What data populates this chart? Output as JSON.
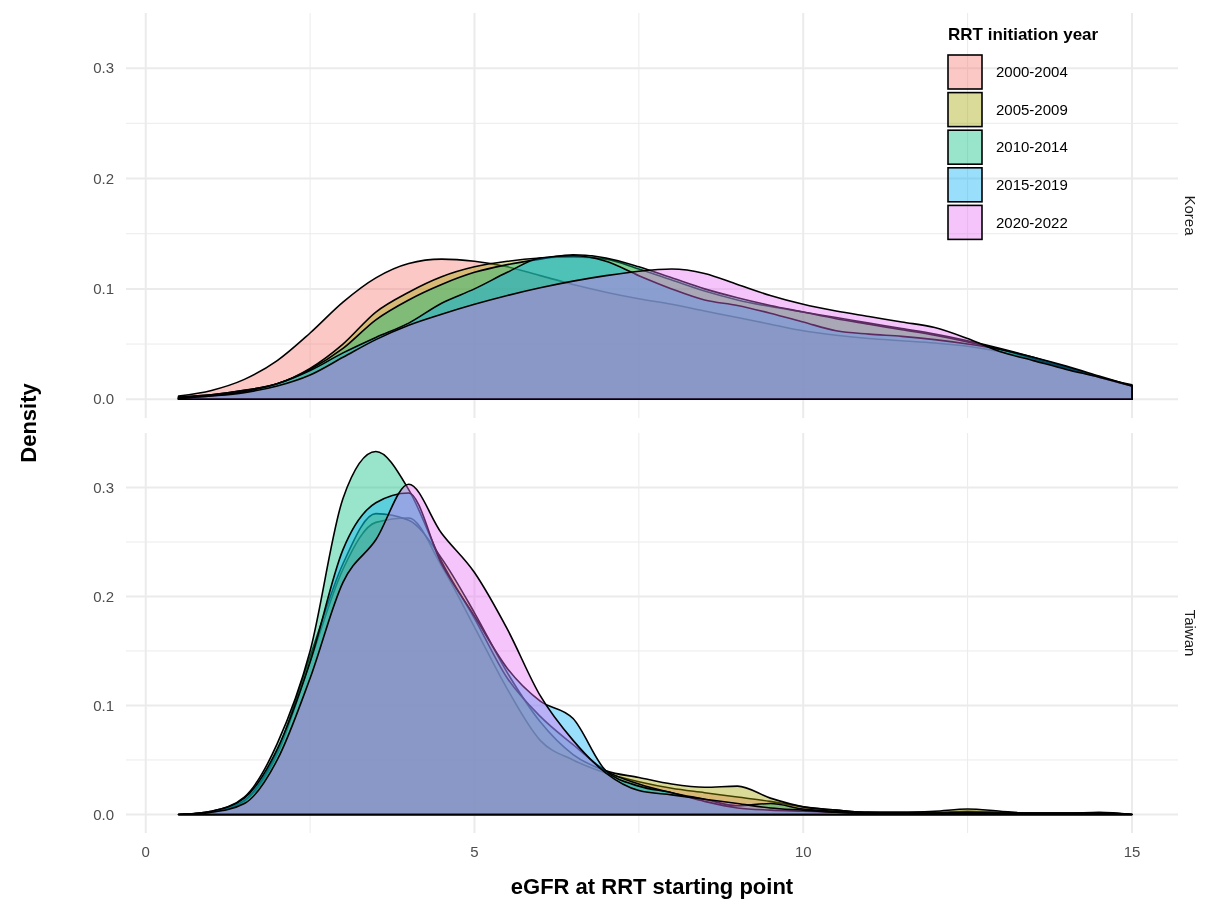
{
  "chart_data": [
    {
      "type": "area",
      "title": "Korea",
      "ylabel": "Density",
      "legend_title": "RRT initiation year",
      "legend": "top right",
      "grid": true,
      "tick_labels": "y",
      "xlim": [
        -0.3,
        15.7
      ],
      "xticks": [
        0,
        {
          "value": 2.5,
          "label": null
        },
        5,
        {
          "value": 7.5,
          "label": null
        },
        10,
        {
          "value": 12.5,
          "label": null
        },
        15
      ],
      "ylim": [
        -0.017,
        0.35
      ],
      "yticks": [
        {
          "value": 0,
          "label": "0.0"
        },
        {
          "value": 0.05,
          "label": null
        },
        0.1,
        {
          "value": 0.15,
          "label": null
        },
        0.2,
        {
          "value": 0.25,
          "label": null
        },
        0.3
      ],
      "x": [
        0.5,
        1,
        1.5,
        2,
        2.5,
        3,
        3.5,
        4,
        4.5,
        5,
        5.5,
        6,
        6.5,
        7,
        7.5,
        8,
        8.5,
        9,
        9.5,
        10,
        10.5,
        11,
        11.5,
        12,
        12.5,
        13,
        13.5,
        14,
        14.5,
        15
      ],
      "series": [
        {
          "name": "2000-2004",
          "color": "#f8766d",
          "values": [
            0.003,
            0.008,
            0.018,
            0.035,
            0.06,
            0.088,
            0.11,
            0.123,
            0.127,
            0.125,
            0.12,
            0.112,
            0.104,
            0.097,
            0.091,
            0.086,
            0.08,
            0.074,
            0.068,
            0.062,
            0.058,
            0.055,
            0.053,
            0.051,
            0.048,
            0.043,
            0.036,
            0.028,
            0.02,
            0.013
          ]
        },
        {
          "name": "2005-2009",
          "color": "#a3a500",
          "values": [
            0.002,
            0.004,
            0.008,
            0.014,
            0.028,
            0.05,
            0.079,
            0.097,
            0.111,
            0.12,
            0.125,
            0.128,
            0.129,
            0.127,
            0.118,
            0.108,
            0.098,
            0.09,
            0.084,
            0.079,
            0.074,
            0.069,
            0.064,
            0.059,
            0.053,
            0.046,
            0.038,
            0.029,
            0.02,
            0.012
          ]
        },
        {
          "name": "2010-2014",
          "color": "#00bf7d",
          "values": [
            0.002,
            0.004,
            0.008,
            0.014,
            0.027,
            0.046,
            0.072,
            0.09,
            0.104,
            0.115,
            0.122,
            0.127,
            0.131,
            0.128,
            0.12,
            0.11,
            0.1,
            0.092,
            0.085,
            0.079,
            0.073,
            0.068,
            0.063,
            0.058,
            0.052,
            0.045,
            0.037,
            0.028,
            0.02,
            0.012
          ]
        },
        {
          "name": "2015-2019",
          "color": "#00b0f6",
          "values": [
            0.001,
            0.003,
            0.007,
            0.014,
            0.026,
            0.042,
            0.056,
            0.069,
            0.087,
            0.1,
            0.115,
            0.128,
            0.13,
            0.125,
            0.112,
            0.1,
            0.09,
            0.085,
            0.078,
            0.07,
            0.062,
            0.059,
            0.057,
            0.054,
            0.05,
            0.045,
            0.038,
            0.03,
            0.021,
            0.012
          ]
        },
        {
          "name": "2020-2022",
          "color": "#e76bf3",
          "values": [
            0.001,
            0.003,
            0.006,
            0.012,
            0.022,
            0.038,
            0.054,
            0.067,
            0.077,
            0.086,
            0.094,
            0.101,
            0.107,
            0.112,
            0.116,
            0.118,
            0.114,
            0.104,
            0.094,
            0.086,
            0.08,
            0.075,
            0.07,
            0.065,
            0.055,
            0.043,
            0.035,
            0.027,
            0.02,
            0.012
          ]
        }
      ]
    },
    {
      "type": "area",
      "title": "Taiwan",
      "xlabel": "eGFR at RRT starting point",
      "grid": true,
      "xlim": [
        -0.3,
        15.7
      ],
      "xticks": [
        0,
        {
          "value": 2.5,
          "label": null
        },
        5,
        {
          "value": 7.5,
          "label": null
        },
        10,
        {
          "value": 12.5,
          "label": null
        },
        15
      ],
      "ylim": [
        -0.017,
        0.35
      ],
      "yticks": [
        {
          "value": 0,
          "label": "0.0"
        },
        {
          "value": 0.05,
          "label": null
        },
        0.1,
        {
          "value": 0.15,
          "label": null
        },
        0.2,
        {
          "value": 0.25,
          "label": null
        },
        0.3
      ],
      "x": [
        0.5,
        1,
        1.5,
        2,
        2.5,
        3,
        3.5,
        4,
        4.5,
        5,
        5.5,
        6,
        6.5,
        7,
        7.5,
        8,
        8.5,
        9,
        9.5,
        10,
        10.5,
        11,
        11.5,
        12,
        12.5,
        13,
        13.5,
        14,
        14.5,
        15
      ],
      "series": [
        {
          "color": "#f8766d",
          "values": [
            0,
            0.002,
            0.012,
            0.055,
            0.14,
            0.225,
            0.268,
            0.272,
            0.228,
            0.172,
            0.115,
            0.068,
            0.05,
            0.038,
            0.03,
            0.024,
            0.02,
            0.016,
            0.012,
            0.007,
            0.004,
            0.002,
            0.002,
            0.002,
            0.003,
            0.002,
            0.001,
            0.001,
            0.001,
            0
          ]
        },
        {
          "color": "#a3a500",
          "values": [
            0,
            0.002,
            0.013,
            0.058,
            0.145,
            0.23,
            0.276,
            0.27,
            0.235,
            0.185,
            0.13,
            0.085,
            0.055,
            0.04,
            0.034,
            0.028,
            0.025,
            0.026,
            0.015,
            0.007,
            0.004,
            0.002,
            0.002,
            0.003,
            0.005,
            0.003,
            0.001,
            0.001,
            0.002,
            0
          ]
        },
        {
          "color": "#00bf7d",
          "values": [
            0,
            0.003,
            0.016,
            0.065,
            0.15,
            0.29,
            0.333,
            0.298,
            0.232,
            0.18,
            0.125,
            0.09,
            0.064,
            0.04,
            0.028,
            0.02,
            0.014,
            0.008,
            0.01,
            0.005,
            0.003,
            0.002,
            0.001,
            0.001,
            0.002,
            0.001,
            0.001,
            0.001,
            0.001,
            0
          ]
        },
        {
          "color": "#00b0f6",
          "values": [
            0,
            0.003,
            0.015,
            0.06,
            0.14,
            0.243,
            0.286,
            0.295,
            0.23,
            0.182,
            0.134,
            0.104,
            0.088,
            0.04,
            0.026,
            0.02,
            0.012,
            0.006,
            0.004,
            0.003,
            0.002,
            0.001,
            0.001,
            0.001,
            0.001,
            0.001,
            0.001,
            0.001,
            0.001,
            0
          ]
        },
        {
          "color": "#e76bf3",
          "values": [
            0,
            0.002,
            0.01,
            0.05,
            0.125,
            0.213,
            0.252,
            0.303,
            0.258,
            0.222,
            0.17,
            0.109,
            0.068,
            0.038,
            0.022,
            0.018,
            0.014,
            0.01,
            0.006,
            0.004,
            0.002,
            0.001,
            0.001,
            0.001,
            0.001,
            0.001,
            0.001,
            0.001,
            0.001,
            0
          ]
        }
      ]
    }
  ]
}
